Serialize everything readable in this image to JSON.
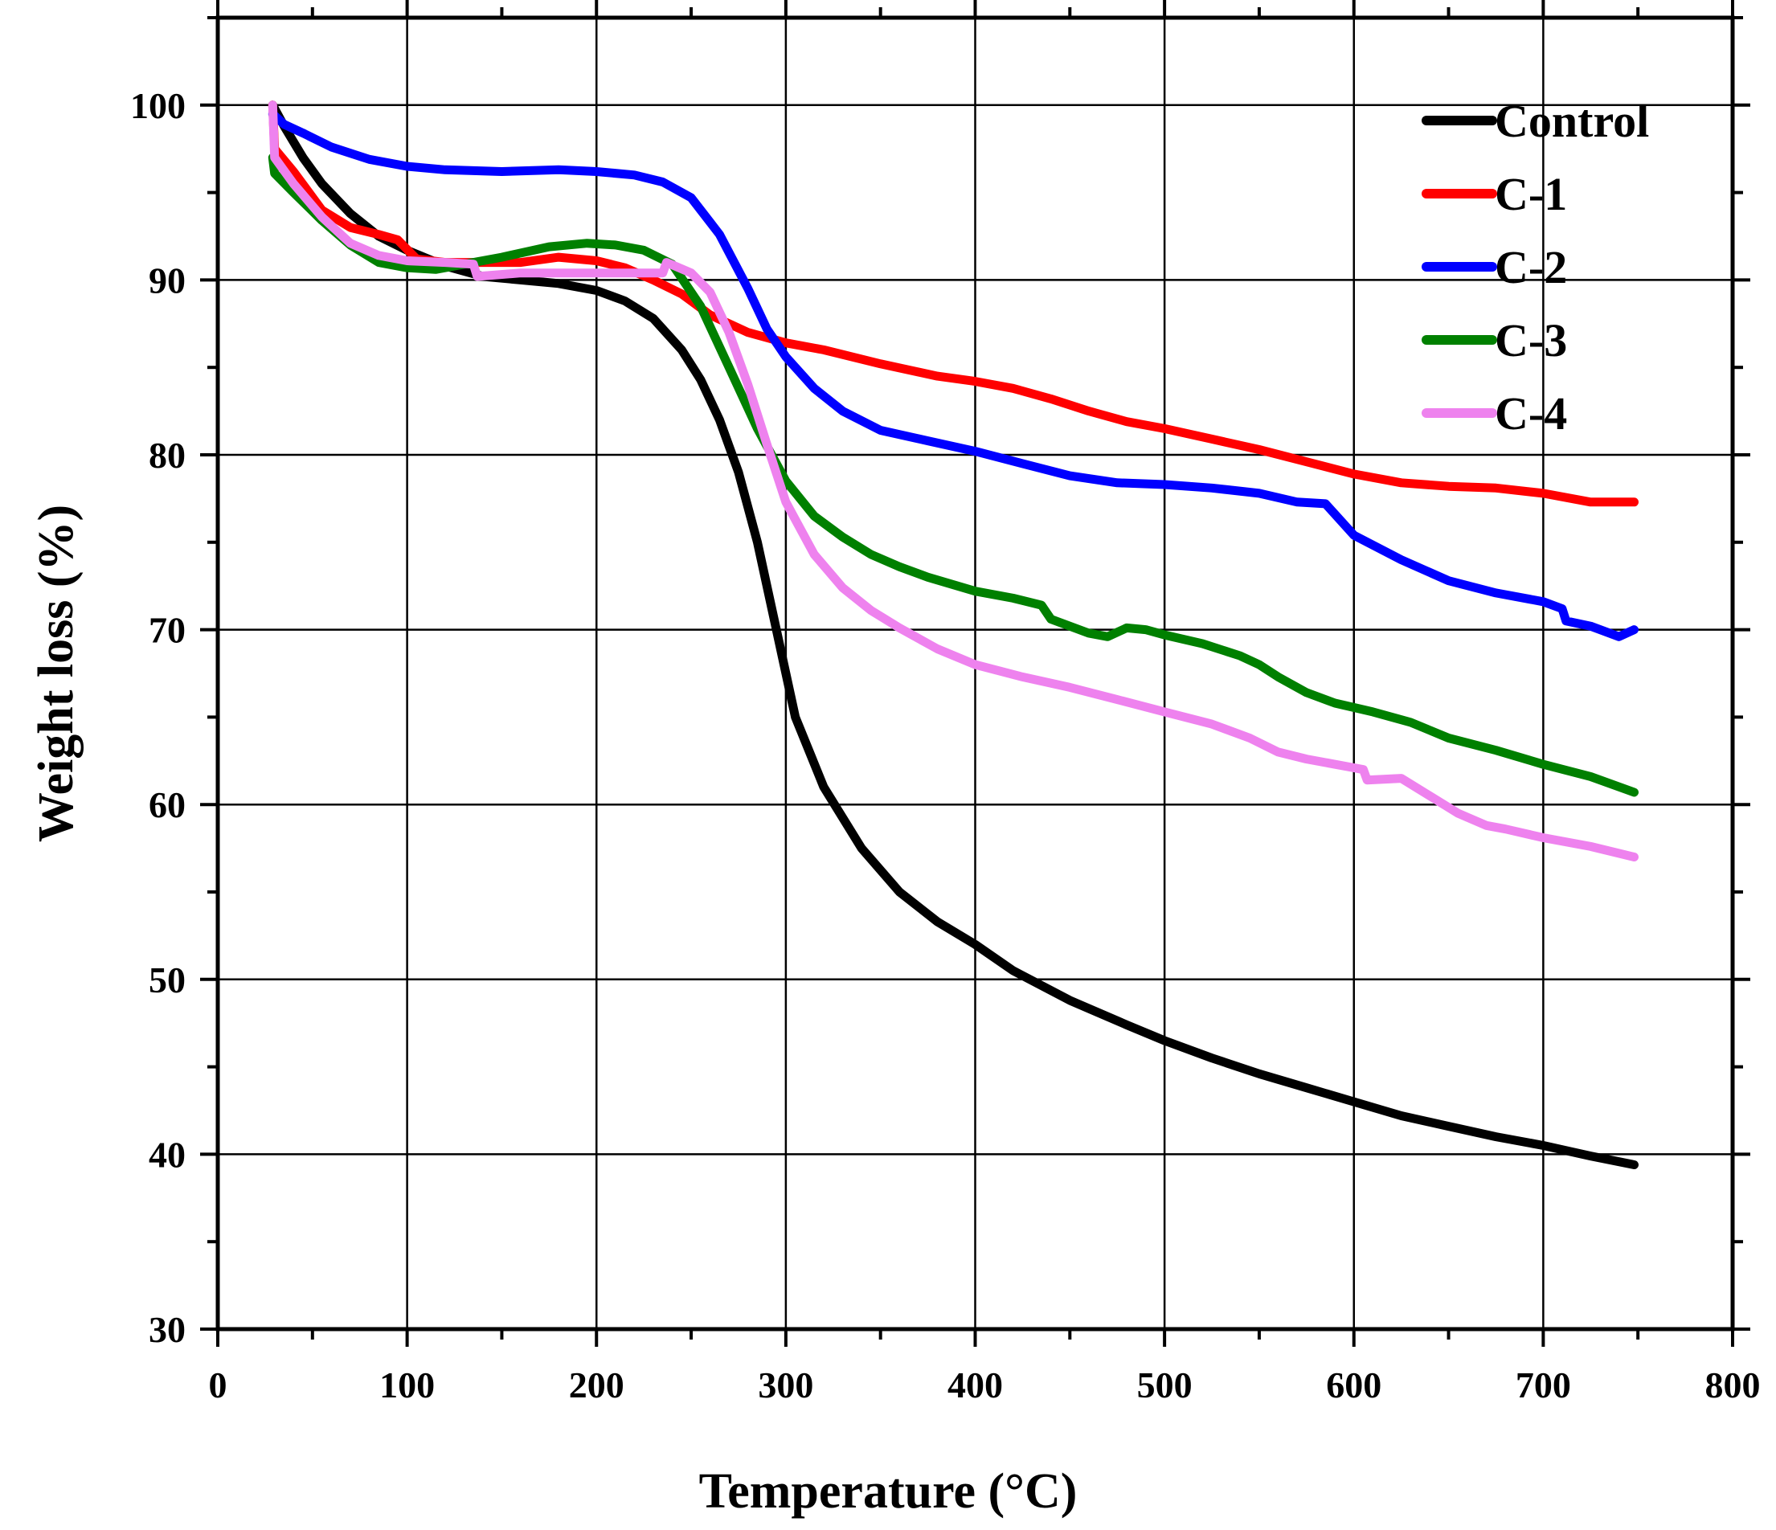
{
  "chart_data": {
    "type": "line",
    "title": "",
    "xlabel": "Temperature (°C)",
    "ylabel": "Weight loss (%)",
    "xlim": [
      0,
      800
    ],
    "ylim": [
      30,
      105
    ],
    "xticks": [
      0,
      100,
      200,
      300,
      400,
      500,
      600,
      700,
      800
    ],
    "yticks": [
      30,
      40,
      50,
      60,
      70,
      80,
      90,
      100
    ],
    "x_tick_labels": [
      "0",
      "100",
      "200",
      "300",
      "400",
      "500",
      "600",
      "700",
      "800"
    ],
    "y_tick_labels": [
      "30",
      "40",
      "50",
      "60",
      "70",
      "80",
      "90",
      "100"
    ],
    "grid": true,
    "legend_position": "top-right",
    "series": [
      {
        "name": "Control",
        "color": "#000000",
        "points": [
          [
            29,
            100
          ],
          [
            35,
            98.8
          ],
          [
            45,
            97
          ],
          [
            55,
            95.5
          ],
          [
            70,
            93.8
          ],
          [
            85,
            92.5
          ],
          [
            100,
            91.7
          ],
          [
            120,
            90.8
          ],
          [
            140,
            90.2
          ],
          [
            160,
            90
          ],
          [
            180,
            89.8
          ],
          [
            200,
            89.4
          ],
          [
            215,
            88.8
          ],
          [
            230,
            87.8
          ],
          [
            245,
            86
          ],
          [
            255,
            84.3
          ],
          [
            265,
            82
          ],
          [
            275,
            79
          ],
          [
            285,
            75
          ],
          [
            295,
            70
          ],
          [
            305,
            65
          ],
          [
            320,
            61
          ],
          [
            340,
            57.5
          ],
          [
            360,
            55
          ],
          [
            380,
            53.3
          ],
          [
            400,
            52
          ],
          [
            420,
            50.5
          ],
          [
            450,
            48.8
          ],
          [
            480,
            47.4
          ],
          [
            500,
            46.5
          ],
          [
            525,
            45.5
          ],
          [
            550,
            44.6
          ],
          [
            575,
            43.8
          ],
          [
            600,
            43
          ],
          [
            625,
            42.2
          ],
          [
            650,
            41.6
          ],
          [
            675,
            41
          ],
          [
            700,
            40.5
          ],
          [
            725,
            39.9
          ],
          [
            748,
            39.4
          ]
        ]
      },
      {
        "name": "C-1",
        "color": "#ff0000",
        "points": [
          [
            29,
            100
          ],
          [
            30,
            97.5
          ],
          [
            40,
            96.2
          ],
          [
            55,
            94
          ],
          [
            70,
            93
          ],
          [
            85,
            92.6
          ],
          [
            95,
            92.3
          ],
          [
            105,
            91.2
          ],
          [
            120,
            91
          ],
          [
            140,
            91
          ],
          [
            160,
            91
          ],
          [
            180,
            91.3
          ],
          [
            200,
            91.1
          ],
          [
            215,
            90.7
          ],
          [
            230,
            90
          ],
          [
            245,
            89.2
          ],
          [
            260,
            88
          ],
          [
            280,
            87
          ],
          [
            300,
            86.4
          ],
          [
            320,
            86
          ],
          [
            350,
            85.2
          ],
          [
            380,
            84.5
          ],
          [
            400,
            84.2
          ],
          [
            420,
            83.8
          ],
          [
            440,
            83.2
          ],
          [
            460,
            82.5
          ],
          [
            480,
            81.9
          ],
          [
            500,
            81.5
          ],
          [
            525,
            80.9
          ],
          [
            550,
            80.3
          ],
          [
            575,
            79.6
          ],
          [
            600,
            78.9
          ],
          [
            625,
            78.4
          ],
          [
            650,
            78.2
          ],
          [
            675,
            78.1
          ],
          [
            700,
            77.8
          ],
          [
            725,
            77.3
          ],
          [
            748,
            77.3
          ]
        ]
      },
      {
        "name": "C-2",
        "color": "#0000ff",
        "points": [
          [
            29,
            99.5
          ],
          [
            35,
            98.9
          ],
          [
            45,
            98.4
          ],
          [
            60,
            97.6
          ],
          [
            80,
            96.9
          ],
          [
            100,
            96.5
          ],
          [
            120,
            96.3
          ],
          [
            150,
            96.2
          ],
          [
            180,
            96.3
          ],
          [
            200,
            96.2
          ],
          [
            220,
            96
          ],
          [
            235,
            95.6
          ],
          [
            250,
            94.7
          ],
          [
            265,
            92.6
          ],
          [
            280,
            89.5
          ],
          [
            290,
            87.2
          ],
          [
            300,
            85.6
          ],
          [
            315,
            83.8
          ],
          [
            330,
            82.5
          ],
          [
            350,
            81.4
          ],
          [
            375,
            80.8
          ],
          [
            400,
            80.2
          ],
          [
            425,
            79.5
          ],
          [
            450,
            78.8
          ],
          [
            475,
            78.4
          ],
          [
            500,
            78.3
          ],
          [
            525,
            78.1
          ],
          [
            550,
            77.8
          ],
          [
            570,
            77.3
          ],
          [
            585,
            77.2
          ],
          [
            600,
            75.4
          ],
          [
            625,
            74
          ],
          [
            650,
            72.8
          ],
          [
            675,
            72.1
          ],
          [
            700,
            71.6
          ],
          [
            710,
            71.2
          ],
          [
            712,
            70.5
          ],
          [
            725,
            70.2
          ],
          [
            740,
            69.6
          ],
          [
            748,
            70
          ]
        ]
      },
      {
        "name": "C-3",
        "color": "#008000",
        "points": [
          [
            29,
            97
          ],
          [
            30,
            96.1
          ],
          [
            40,
            95
          ],
          [
            55,
            93.4
          ],
          [
            70,
            92
          ],
          [
            85,
            91
          ],
          [
            100,
            90.7
          ],
          [
            115,
            90.6
          ],
          [
            130,
            90.9
          ],
          [
            150,
            91.3
          ],
          [
            175,
            91.9
          ],
          [
            195,
            92.1
          ],
          [
            210,
            92
          ],
          [
            225,
            91.7
          ],
          [
            240,
            90.9
          ],
          [
            255,
            88.5
          ],
          [
            270,
            85
          ],
          [
            285,
            81.5
          ],
          [
            300,
            78.5
          ],
          [
            315,
            76.5
          ],
          [
            330,
            75.3
          ],
          [
            345,
            74.3
          ],
          [
            360,
            73.6
          ],
          [
            375,
            73
          ],
          [
            400,
            72.2
          ],
          [
            420,
            71.8
          ],
          [
            435,
            71.4
          ],
          [
            440,
            70.6
          ],
          [
            460,
            69.8
          ],
          [
            470,
            69.6
          ],
          [
            480,
            70.1
          ],
          [
            490,
            70
          ],
          [
            500,
            69.7
          ],
          [
            520,
            69.2
          ],
          [
            540,
            68.5
          ],
          [
            550,
            68
          ],
          [
            560,
            67.3
          ],
          [
            575,
            66.4
          ],
          [
            590,
            65.8
          ],
          [
            610,
            65.3
          ],
          [
            630,
            64.7
          ],
          [
            650,
            63.8
          ],
          [
            675,
            63.1
          ],
          [
            700,
            62.3
          ],
          [
            725,
            61.6
          ],
          [
            748,
            60.7
          ]
        ]
      },
      {
        "name": "C-4",
        "color": "#ee82ee",
        "points": [
          [
            29,
            100
          ],
          [
            30,
            97
          ],
          [
            40,
            95.5
          ],
          [
            55,
            93.6
          ],
          [
            70,
            92.1
          ],
          [
            85,
            91.4
          ],
          [
            100,
            91.1
          ],
          [
            120,
            91
          ],
          [
            135,
            90.9
          ],
          [
            137,
            90.2
          ],
          [
            160,
            90.4
          ],
          [
            180,
            90.4
          ],
          [
            200,
            90.4
          ],
          [
            220,
            90.4
          ],
          [
            235,
            90.4
          ],
          [
            237,
            91
          ],
          [
            250,
            90.4
          ],
          [
            260,
            89.3
          ],
          [
            270,
            87
          ],
          [
            280,
            84
          ],
          [
            290,
            80.6
          ],
          [
            300,
            77.3
          ],
          [
            315,
            74.3
          ],
          [
            330,
            72.4
          ],
          [
            345,
            71.1
          ],
          [
            360,
            70.1
          ],
          [
            380,
            68.9
          ],
          [
            400,
            68
          ],
          [
            425,
            67.3
          ],
          [
            450,
            66.7
          ],
          [
            475,
            66
          ],
          [
            500,
            65.3
          ],
          [
            525,
            64.6
          ],
          [
            545,
            63.8
          ],
          [
            560,
            63
          ],
          [
            575,
            62.6
          ],
          [
            600,
            62.1
          ],
          [
            605,
            62
          ],
          [
            607,
            61.4
          ],
          [
            625,
            61.5
          ],
          [
            640,
            60.5
          ],
          [
            655,
            59.5
          ],
          [
            670,
            58.8
          ],
          [
            680,
            58.6
          ],
          [
            700,
            58.1
          ],
          [
            725,
            57.6
          ],
          [
            748,
            57
          ]
        ]
      }
    ]
  }
}
